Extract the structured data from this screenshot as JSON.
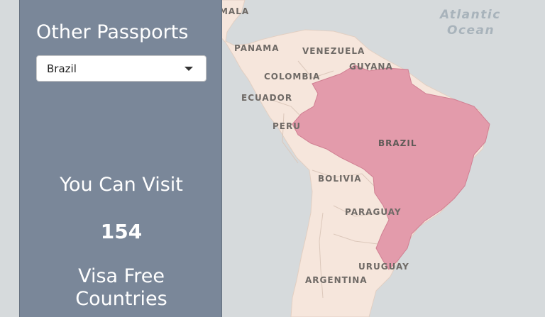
{
  "map": {
    "labels": {
      "guatemala": "GUATEMALA",
      "atlantic_ocean_1": "Atlantic",
      "atlantic_ocean_2": "Ocean",
      "panama": "PANAMA",
      "venezuela": "VENEZUELA",
      "guyana": "GUYANA",
      "colombia": "COLOMBIA",
      "ecuador": "ECUADOR",
      "peru": "PERU",
      "brazil": "BRAZIL",
      "bolivia": "BOLIVIA",
      "paraguay": "PARAGUAY",
      "uruguay": "URUGUAY",
      "argentina": "ARGENTINA"
    },
    "colors": {
      "ocean": "#d6dadc",
      "land": "#f6e6dc",
      "highlight": "#e39bab",
      "borders": "#d8c2b4"
    }
  },
  "panel": {
    "title": "Other Passports",
    "select_value": "Brazil",
    "visit_heading": "You Can Visit",
    "visit_count": "154",
    "visit_footer_line1": "Visa Free",
    "visit_footer_line2": "Countries"
  }
}
